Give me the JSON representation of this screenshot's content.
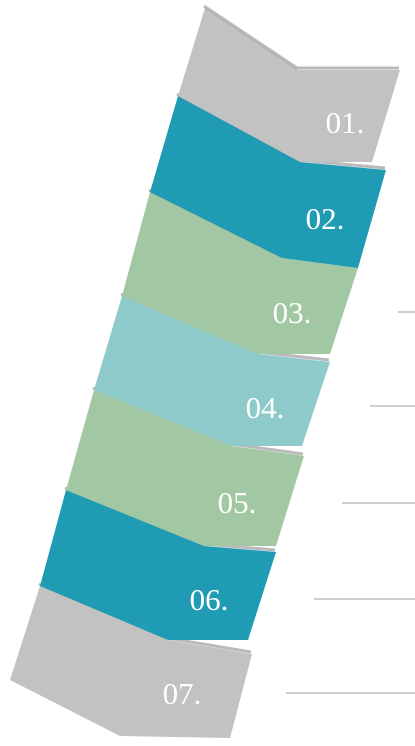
{
  "diagram": {
    "steps": [
      {
        "label": "01.",
        "color": "#c2c2c2"
      },
      {
        "label": "02.",
        "color": "#1f9bb4"
      },
      {
        "label": "03.",
        "color": "#a1c8a2"
      },
      {
        "label": "04.",
        "color": "#8ecac9"
      },
      {
        "label": "05.",
        "color": "#a1c8a2"
      },
      {
        "label": "06.",
        "color": "#1f9bb4"
      },
      {
        "label": "07.",
        "color": "#c2c2c2"
      }
    ],
    "connector_color": "#bfbfbf",
    "shadow_color": "#3a3a3a"
  }
}
